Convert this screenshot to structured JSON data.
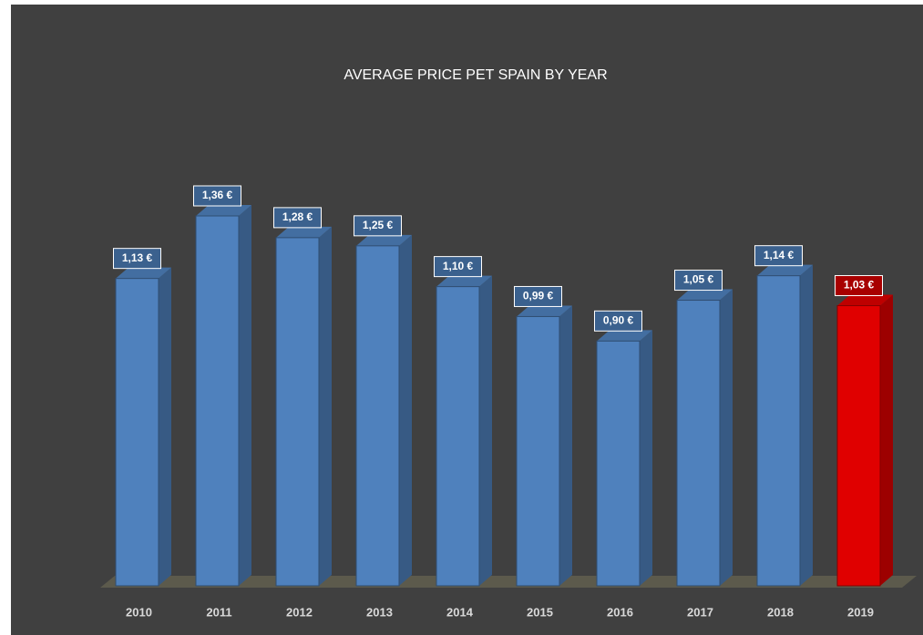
{
  "chart_data": {
    "type": "bar3d",
    "title": "AVERAGE PRICE PET SPAIN BY YEAR",
    "categories": [
      "2010",
      "2011",
      "2012",
      "2013",
      "2014",
      "2015",
      "2016",
      "2017",
      "2018",
      "2019"
    ],
    "values": [
      1.13,
      1.36,
      1.28,
      1.25,
      1.1,
      0.99,
      0.9,
      1.05,
      1.14,
      1.03
    ],
    "value_labels": [
      "1,13 €",
      "1,36 €",
      "1,28 €",
      "1,25 €",
      "1,10 €",
      "0,99 €",
      "0,90 €",
      "1,05 €",
      "1,14 €",
      "1,03 €"
    ],
    "colors": [
      "#4f81bd",
      "#4f81bd",
      "#4f81bd",
      "#4f81bd",
      "#4f81bd",
      "#4f81bd",
      "#4f81bd",
      "#4f81bd",
      "#4f81bd",
      "#e00000"
    ]
  }
}
